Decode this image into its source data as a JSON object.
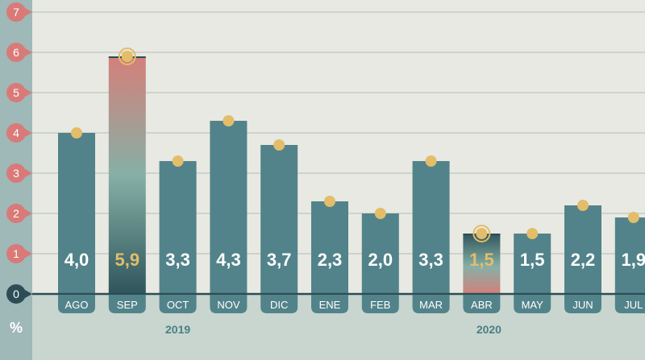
{
  "chart_data": {
    "type": "bar",
    "unit": "%",
    "categories": [
      "AGO",
      "SEP",
      "OCT",
      "NOV",
      "DIC",
      "ENE",
      "FEB",
      "MAR",
      "ABR",
      "MAY",
      "JUN",
      "JUL"
    ],
    "values": [
      4.0,
      5.9,
      3.3,
      4.3,
      3.7,
      2.3,
      2.0,
      3.3,
      1.5,
      1.5,
      2.2,
      1.9
    ],
    "value_labels": [
      "4,0",
      "5,9",
      "3,3",
      "4,3",
      "3,7",
      "2,3",
      "2,0",
      "3,3",
      "1,5",
      "1,5",
      "2,2",
      "1,9"
    ],
    "highlighted": [
      "SEP",
      "ABR"
    ],
    "year_groups": [
      {
        "label": "2019",
        "categories": [
          "AGO",
          "SEP",
          "OCT",
          "NOV",
          "DIC"
        ]
      },
      {
        "label": "2020",
        "categories": [
          "ENE",
          "FEB",
          "MAR",
          "ABR",
          "MAY",
          "JUN",
          "JUL"
        ]
      }
    ],
    "ylim": [
      0,
      7
    ],
    "yticks": [
      0,
      1,
      2,
      3,
      4,
      5,
      6,
      7
    ],
    "grid": true,
    "colors": {
      "bar": "#52838a",
      "highlight_top": "#d4807a",
      "highlight_mid": "#86b0a6",
      "highlight_bottom": "#2f555c",
      "marker": "#e3bd6a",
      "highlight_label": "#e3bd6a",
      "label": "#ffffff",
      "tick_marker": "#d97a78",
      "zero_marker": "#2c4d55",
      "axis_strip": "#9fb8b8",
      "plot_bg": "#e8e9e2",
      "bottom_bg": "#c8d6cf"
    }
  }
}
